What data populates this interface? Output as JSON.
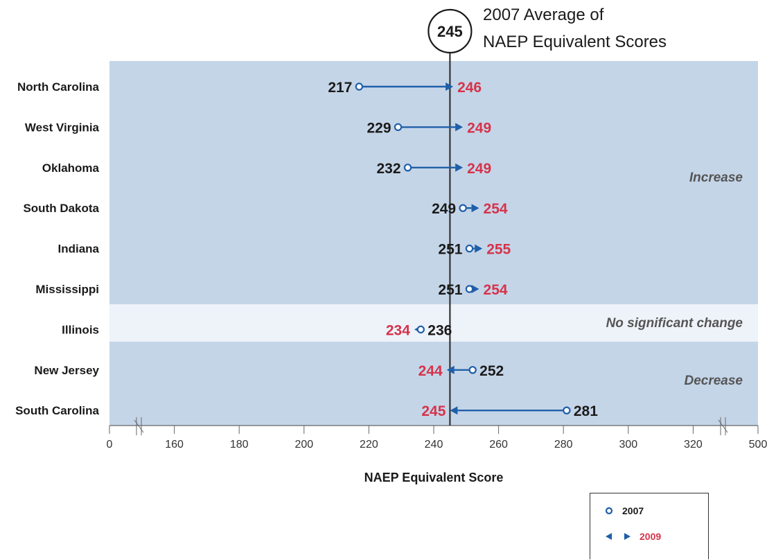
{
  "chart_data": {
    "type": "dot-arrow",
    "average_circle_value": "245",
    "average_label_lines": [
      "2007 Average of",
      "NAEP Equivalent Scores"
    ],
    "average_value": 245,
    "xlabel": "NAEP Equivalent Score",
    "x_ticks": [
      "0",
      "160",
      "180",
      "200",
      "220",
      "240",
      "260",
      "280",
      "300",
      "320",
      "500"
    ],
    "x_tick_values": [
      140,
      160,
      180,
      200,
      220,
      240,
      260,
      280,
      300,
      320,
      340
    ],
    "axis_break": true,
    "regions": [
      {
        "label": "Increase",
        "rows": 6,
        "color": "#c5d5e8"
      },
      {
        "label": "No significant change",
        "rows": 1,
        "color": "#eef3f9"
      },
      {
        "label": "Decrease",
        "rows": 2,
        "color": "#c5d5e8"
      }
    ],
    "rows": [
      {
        "state": "North Carolina",
        "v2007": 217,
        "v2009": 246
      },
      {
        "state": "West Virginia",
        "v2007": 229,
        "v2009": 249
      },
      {
        "state": "Oklahoma",
        "v2007": 232,
        "v2009": 249
      },
      {
        "state": "South Dakota",
        "v2007": 249,
        "v2009": 254
      },
      {
        "state": "Indiana",
        "v2007": 251,
        "v2009": 255
      },
      {
        "state": "Mississippi",
        "v2007": 251,
        "v2009": 254
      },
      {
        "state": "Illinois",
        "v2007": 236,
        "v2009": 234
      },
      {
        "state": "New Jersey",
        "v2007": 252,
        "v2009": 244
      },
      {
        "state": "South Carolina",
        "v2007": 281,
        "v2009": 245
      }
    ],
    "legend": [
      {
        "marker": "circle",
        "label": "2007"
      },
      {
        "marker": "arrows",
        "label": "2009"
      }
    ],
    "colors": {
      "arrow": "#1f5fa8",
      "value_2009": "#d6334a",
      "value_2007": "#1a1a1a"
    }
  }
}
